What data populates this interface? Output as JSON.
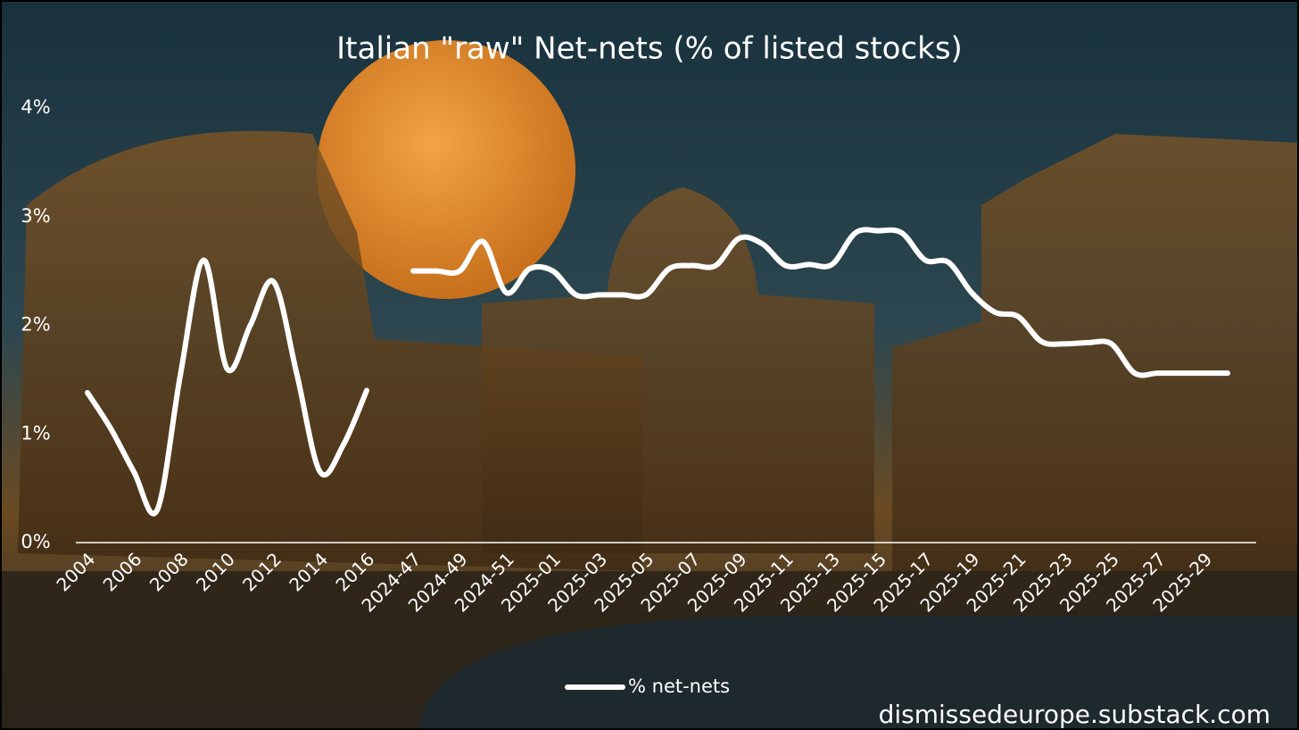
{
  "chart_data": {
    "type": "line",
    "title": "Italian \"raw\" Net-nets (% of listed stocks)",
    "annotation": "dismissedeurope.substack.com",
    "categories": [
      "2004",
      null,
      "2006",
      null,
      "2008",
      null,
      "2010",
      null,
      "2012",
      null,
      "2014",
      null,
      "2016",
      null,
      "2024-47",
      null,
      "2024-49",
      null,
      "2024-51",
      null,
      "2025-01",
      null,
      "2025-03",
      null,
      "2025-05",
      null,
      "2025-07",
      null,
      "2025-09",
      null,
      "2025-11",
      null,
      "2025-13",
      null,
      "2025-15",
      null,
      "2025-17",
      null,
      "2025-19",
      null,
      "2025-21",
      null,
      "2025-23",
      null,
      "2025-25",
      null,
      "2025-27",
      null,
      "2025-29",
      null
    ],
    "series": [
      {
        "name": "% net-nets",
        "color": "#ffffff",
        "values": [
          1.38,
          1.05,
          0.65,
          0.3,
          1.55,
          2.6,
          1.6,
          2.0,
          2.4,
          1.55,
          0.65,
          0.9,
          1.4,
          null,
          2.5,
          2.5,
          2.5,
          2.77,
          2.3,
          2.52,
          2.5,
          2.28,
          2.28,
          2.28,
          2.28,
          2.52,
          2.55,
          2.55,
          2.8,
          2.75,
          2.55,
          2.56,
          2.56,
          2.85,
          2.87,
          2.85,
          2.6,
          2.58,
          2.3,
          2.12,
          2.08,
          1.85,
          1.83,
          1.84,
          1.83,
          1.56,
          1.56,
          1.56,
          1.56,
          1.56
        ]
      }
    ],
    "ylim": [
      0,
      4
    ],
    "yticks": [
      {
        "value": 0,
        "label": "0%"
      },
      {
        "value": 1,
        "label": "1%"
      },
      {
        "value": 2,
        "label": "2%"
      },
      {
        "value": 3,
        "label": "3%"
      },
      {
        "value": 4,
        "label": "4%"
      }
    ],
    "grid": false,
    "legend": "bottom"
  }
}
